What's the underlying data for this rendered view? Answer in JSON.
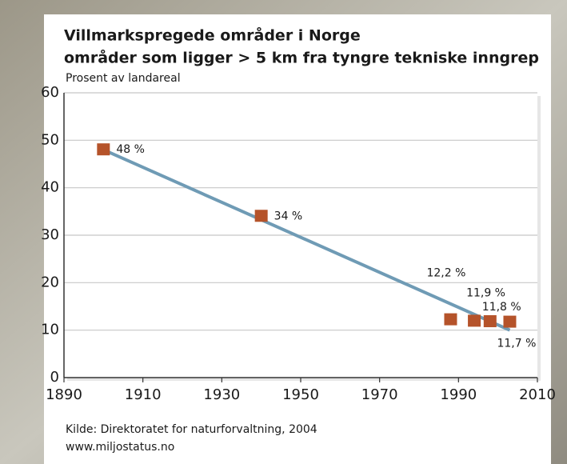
{
  "chart_data": {
    "type": "scatter",
    "title": "Villmarkspregede områder i Norge",
    "subtitle": "områder som ligger > 5 km fra tyngre tekniske inngrep",
    "y_label": "Prosent av landareal",
    "x": [
      1900,
      1940,
      1988,
      1994,
      1998,
      2003
    ],
    "values": [
      48,
      34,
      12.2,
      11.9,
      11.8,
      11.7
    ],
    "value_labels": [
      "48 %",
      "34 %",
      "12,2 %",
      "11,9 %",
      "11,8 %",
      "11,7 %"
    ],
    "color": "#b5532a",
    "trend": {
      "x": [
        1900,
        2003
      ],
      "values": [
        48,
        10
      ],
      "color": "#6f9bb5"
    },
    "xlim": [
      1890,
      2010
    ],
    "xticks": [
      1890,
      1910,
      1930,
      1950,
      1970,
      1990,
      2010
    ],
    "ylim": [
      0,
      60
    ],
    "yticks": [
      0,
      10,
      20,
      30,
      40,
      50,
      60
    ],
    "grid": true,
    "source": [
      "Kilde:  Direktoratet for naturforvaltning, 2004",
      "www.miljostatus.no"
    ]
  }
}
